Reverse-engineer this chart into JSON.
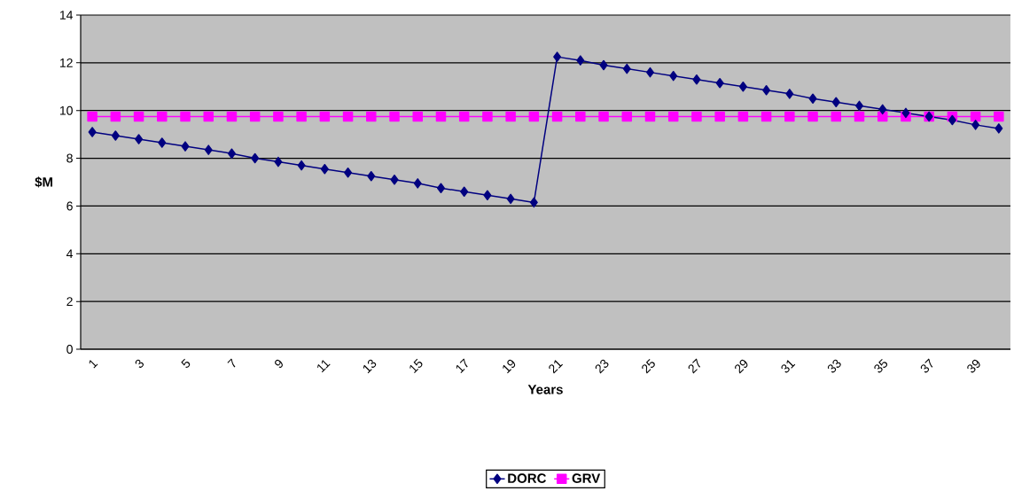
{
  "chart_data": {
    "type": "line",
    "xlabel": "Years",
    "ylabel": "$M",
    "categories": [
      "1",
      null,
      "3",
      null,
      "5",
      null,
      "7",
      null,
      "9",
      null,
      "11",
      null,
      "13",
      null,
      "15",
      null,
      "17",
      null,
      "19",
      null,
      "21",
      null,
      "23",
      null,
      "25",
      null,
      "27",
      null,
      "29",
      null,
      "31",
      null,
      "33",
      null,
      "35",
      null,
      "37",
      null,
      "39",
      null
    ],
    "series": [
      {
        "name": "DORC",
        "color": "#000080",
        "marker": "diamond",
        "values": [
          9.1,
          8.95,
          8.8,
          8.65,
          8.5,
          8.35,
          8.2,
          8.0,
          7.85,
          7.7,
          7.55,
          7.4,
          7.25,
          7.1,
          6.95,
          6.75,
          6.6,
          6.45,
          6.3,
          6.15,
          12.25,
          12.1,
          11.9,
          11.75,
          11.6,
          11.45,
          11.3,
          11.15,
          11.0,
          10.85,
          10.7,
          10.5,
          10.35,
          10.2,
          10.05,
          9.9,
          9.75,
          9.6,
          9.4,
          9.25
        ]
      },
      {
        "name": "GRV",
        "color": "#ff00ff",
        "marker": "square",
        "values": [
          9.75,
          9.75,
          9.75,
          9.75,
          9.75,
          9.75,
          9.75,
          9.75,
          9.75,
          9.75,
          9.75,
          9.75,
          9.75,
          9.75,
          9.75,
          9.75,
          9.75,
          9.75,
          9.75,
          9.75,
          9.75,
          9.75,
          9.75,
          9.75,
          9.75,
          9.75,
          9.75,
          9.75,
          9.75,
          9.75,
          9.75,
          9.75,
          9.75,
          9.75,
          9.75,
          9.75,
          9.75,
          9.75,
          9.75,
          9.75
        ]
      }
    ],
    "ylim": [
      0,
      14
    ],
    "yticks": [
      0,
      2,
      4,
      6,
      8,
      10,
      12,
      14
    ],
    "grid": "y",
    "legend": "bottom",
    "line_style": "solid"
  }
}
